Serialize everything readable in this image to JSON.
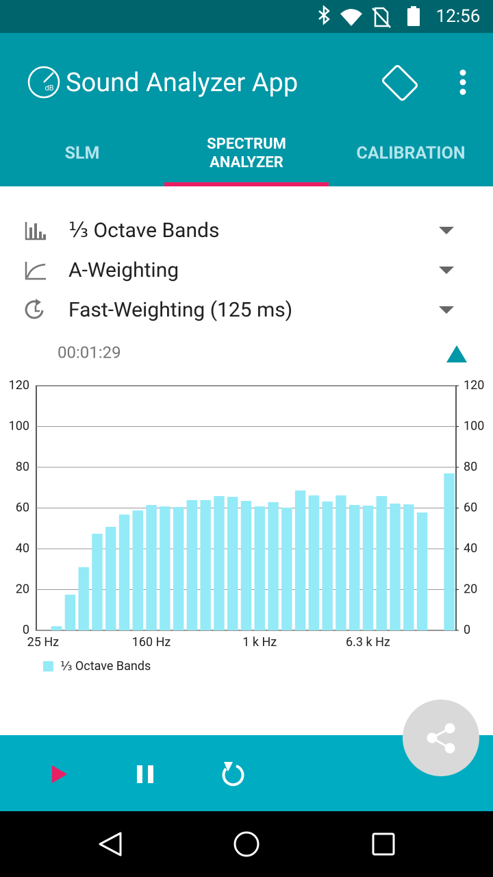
{
  "status_bar": {
    "time": "12:56"
  },
  "app_bar": {
    "logo_text": "dB",
    "title": "Sound Analyzer App"
  },
  "tabs": [
    "SLM",
    [
      "SPECTRUM",
      "ANALYZER"
    ],
    "CALIBRATION"
  ],
  "settings": [
    "⅓ Octave Bands",
    "A-Weighting",
    "Fast-Weighting (125 ms)"
  ],
  "timer": "00:01:29",
  "chart_data": {
    "type": "bar",
    "categories": [
      "25 Hz",
      null,
      null,
      null,
      null,
      null,
      null,
      null,
      "160 Hz",
      null,
      null,
      null,
      null,
      null,
      null,
      null,
      "1 k Hz",
      null,
      null,
      null,
      null,
      null,
      null,
      null,
      "6.3 k Hz",
      null,
      null,
      null,
      null,
      null,
      null
    ],
    "series": [
      {
        "name": "⅓ Octave Bands",
        "color": "#94eaf7",
        "values": [
          null,
          2,
          17.5,
          31,
          47.4,
          50.8,
          56.8,
          58.8,
          61.5,
          60.8,
          60.5,
          63.9,
          63.9,
          65.9,
          65.5,
          63.5,
          60.8,
          62.9,
          60.2,
          68.6,
          66.2,
          63.2,
          66.2,
          61.5,
          61.2,
          65.9,
          62.2,
          61.8,
          57.8,
          null,
          77
        ]
      }
    ],
    "ylim": [
      0,
      120
    ],
    "yticks": [
      0,
      20,
      40,
      60,
      80,
      100,
      120
    ],
    "y2lim": [
      0,
      120
    ],
    "y2ticks": [
      0,
      20,
      40,
      60,
      80,
      100,
      120
    ],
    "grid": true
  }
}
